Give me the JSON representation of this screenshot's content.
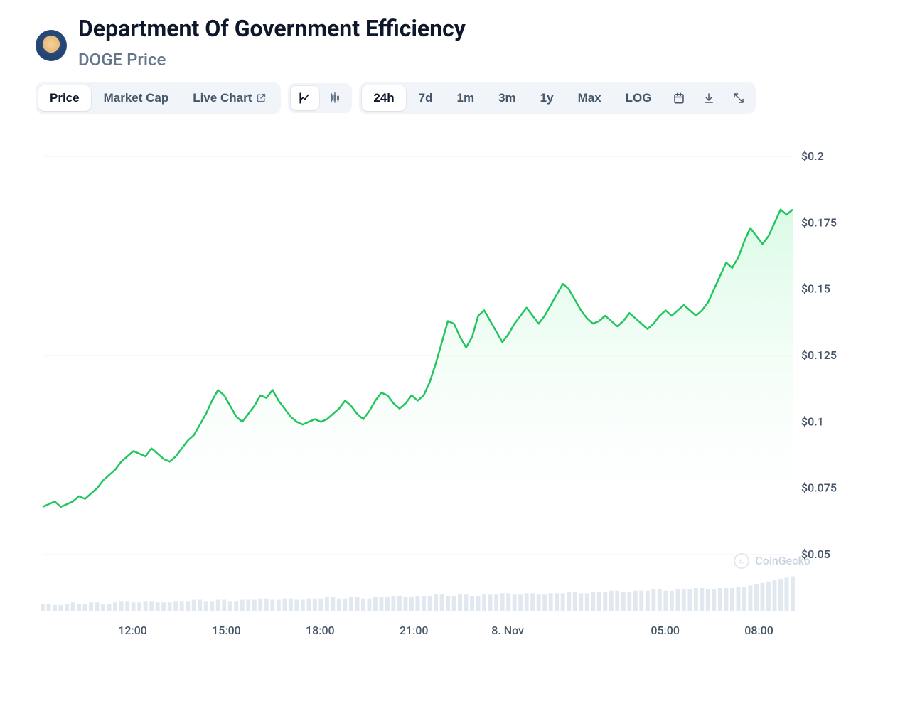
{
  "header": {
    "title": "Department Of Government Efficiency",
    "subtitle": "DOGE Price"
  },
  "toolbar": {
    "view_tabs": [
      {
        "label": "Price",
        "active": true
      },
      {
        "label": "Market Cap",
        "active": false
      },
      {
        "label": "Live Chart",
        "active": false,
        "external": true
      }
    ],
    "chart_type": {
      "line_active": true
    },
    "range_tabs": [
      {
        "label": "24h",
        "active": true
      },
      {
        "label": "7d"
      },
      {
        "label": "1m"
      },
      {
        "label": "3m"
      },
      {
        "label": "1y"
      },
      {
        "label": "Max"
      },
      {
        "label": "LOG"
      }
    ]
  },
  "watermark": "CoinGecko",
  "chart": {
    "type": "area-line",
    "line_color": "#22c55e",
    "area_gradient_top": "#bbf7d0",
    "area_gradient_bottom": "#ffffff",
    "grid_color": "#eef2f6",
    "background_color": "#ffffff",
    "line_width": 2.5,
    "y_axis": {
      "min": 0.05,
      "max": 0.2,
      "step": 0.025,
      "tick_labels": [
        "$0.05",
        "$0.075",
        "$0.1",
        "$0.125",
        "$0.15",
        "$0.175",
        "$0.2"
      ],
      "tick_values": [
        0.05,
        0.075,
        0.1,
        0.125,
        0.15,
        0.175,
        0.2
      ],
      "label_fontsize": 16,
      "label_color": "#475569"
    },
    "x_axis": {
      "tick_labels": [
        "12:00",
        "15:00",
        "18:00",
        "21:00",
        "8. Nov",
        "",
        "05:00",
        "08:00"
      ],
      "tick_positions_pct": [
        12,
        24.5,
        37,
        49.5,
        62,
        74.5,
        83,
        95.5
      ],
      "label_fontsize": 16,
      "label_color": "#475569"
    },
    "price_series": [
      0.068,
      0.069,
      0.07,
      0.068,
      0.069,
      0.07,
      0.072,
      0.071,
      0.073,
      0.075,
      0.078,
      0.08,
      0.082,
      0.085,
      0.087,
      0.089,
      0.088,
      0.087,
      0.09,
      0.088,
      0.086,
      0.085,
      0.087,
      0.09,
      0.093,
      0.095,
      0.099,
      0.103,
      0.108,
      0.112,
      0.11,
      0.106,
      0.102,
      0.1,
      0.103,
      0.106,
      0.11,
      0.109,
      0.112,
      0.108,
      0.105,
      0.102,
      0.1,
      0.099,
      0.1,
      0.101,
      0.1,
      0.101,
      0.103,
      0.105,
      0.108,
      0.106,
      0.103,
      0.101,
      0.104,
      0.108,
      0.111,
      0.11,
      0.107,
      0.105,
      0.107,
      0.11,
      0.108,
      0.11,
      0.115,
      0.122,
      0.13,
      0.138,
      0.137,
      0.132,
      0.128,
      0.132,
      0.14,
      0.142,
      0.138,
      0.134,
      0.13,
      0.133,
      0.137,
      0.14,
      0.143,
      0.14,
      0.137,
      0.14,
      0.144,
      0.148,
      0.152,
      0.15,
      0.146,
      0.142,
      0.139,
      0.137,
      0.138,
      0.14,
      0.138,
      0.136,
      0.138,
      0.141,
      0.139,
      0.137,
      0.135,
      0.137,
      0.14,
      0.142,
      0.14,
      0.142,
      0.144,
      0.142,
      0.14,
      0.142,
      0.145,
      0.15,
      0.155,
      0.16,
      0.158,
      0.162,
      0.168,
      0.173,
      0.17,
      0.167,
      0.17,
      0.175,
      0.18,
      0.178,
      0.18
    ],
    "volume_series": [
      6,
      6,
      5,
      5,
      6,
      7,
      6,
      6,
      7,
      7,
      6,
      6,
      7,
      8,
      8,
      7,
      7,
      8,
      8,
      7,
      7,
      7,
      8,
      8,
      8,
      9,
      9,
      8,
      8,
      9,
      9,
      8,
      8,
      9,
      9,
      9,
      10,
      10,
      9,
      9,
      10,
      10,
      9,
      9,
      10,
      10,
      10,
      11,
      11,
      10,
      10,
      11,
      11,
      10,
      10,
      11,
      11,
      11,
      12,
      12,
      11,
      11,
      12,
      12,
      12,
      13,
      13,
      12,
      12,
      13,
      13,
      12,
      12,
      13,
      13,
      13,
      14,
      14,
      13,
      13,
      14,
      14,
      13,
      13,
      14,
      14,
      14,
      15,
      15,
      14,
      14,
      15,
      15,
      15,
      16,
      16,
      15,
      15,
      16,
      16,
      16,
      17,
      17,
      16,
      16,
      17,
      17,
      17,
      18,
      18,
      17,
      17,
      18,
      18,
      18,
      19,
      19,
      20,
      21,
      22,
      23,
      24,
      25,
      26,
      27
    ],
    "volume_bar_color": "#e2e8f0",
    "volume_max": 30
  }
}
